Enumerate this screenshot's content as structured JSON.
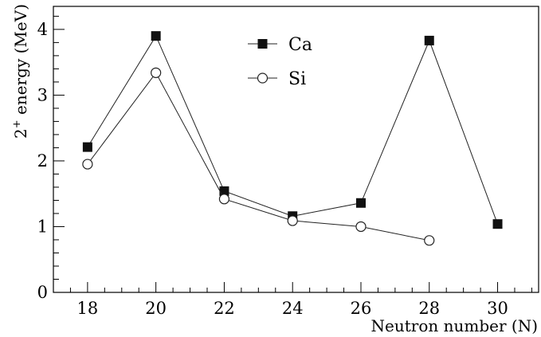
{
  "chart_data": {
    "type": "line",
    "xlabel": "Neutron number (N)",
    "ylabel_main": "2",
    "ylabel_sup": "+",
    "ylabel_rest": " energy (MeV)",
    "xlim": [
      17,
      31.2
    ],
    "ylim": [
      0,
      4.35
    ],
    "xticks": [
      18,
      20,
      22,
      24,
      26,
      28,
      30
    ],
    "yticks": [
      0,
      1,
      2,
      3,
      4
    ],
    "x_minor_step": 0.5,
    "y_minor_step": 0.2,
    "grid": false,
    "legend_position": "top-center",
    "series": [
      {
        "name": "Ca",
        "marker": "filled-square",
        "x": [
          18,
          20,
          22,
          24,
          26,
          28,
          30
        ],
        "y": [
          2.21,
          3.9,
          1.54,
          1.16,
          1.36,
          3.83,
          1.04
        ]
      },
      {
        "name": "Si",
        "marker": "open-circle",
        "x": [
          18,
          20,
          22,
          24,
          26,
          28
        ],
        "y": [
          1.95,
          3.34,
          1.42,
          1.09,
          1.0,
          0.79
        ]
      }
    ]
  }
}
